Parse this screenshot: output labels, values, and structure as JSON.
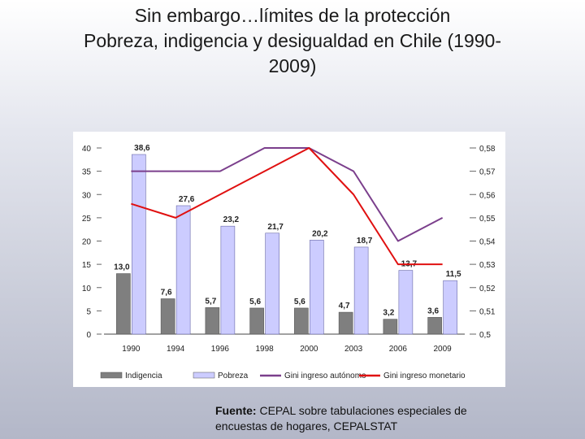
{
  "slide": {
    "title_line1": "Sin embargo…límites de la protección",
    "title_line2": "Pobreza, indigencia y desigualdad en Chile (1990-",
    "title_line3": "2009)"
  },
  "chart_data": {
    "type": "bar",
    "title": "",
    "categories": [
      "1990",
      "1994",
      "1996",
      "1998",
      "2000",
      "2003",
      "2006",
      "2009"
    ],
    "y_left": {
      "ylim": [
        0,
        40
      ],
      "ticks": [
        0,
        5,
        10,
        15,
        20,
        25,
        30,
        35,
        40
      ],
      "tick_labels": [
        "0",
        "5",
        "10",
        "15",
        "20",
        "25",
        "30",
        "35",
        "40"
      ]
    },
    "y_right": {
      "ylim": [
        0.5,
        0.58
      ],
      "ticks": [
        0.5,
        0.51,
        0.52,
        0.53,
        0.54,
        0.55,
        0.56,
        0.57,
        0.58
      ],
      "tick_labels": [
        "0,5",
        "0,51",
        "0,52",
        "0,53",
        "0,54",
        "0,55",
        "0,56",
        "0,57",
        "0,58"
      ]
    },
    "series": [
      {
        "name": "Indigencia",
        "kind": "bar",
        "axis": "left",
        "color": "#7f7f7f",
        "values": [
          13.0,
          7.6,
          5.7,
          5.6,
          5.6,
          4.7,
          3.2,
          3.6
        ],
        "labels": [
          "13,0",
          "7,6",
          "5,7",
          "5,6",
          "5,6",
          "4,7",
          "3,2",
          "3,6"
        ]
      },
      {
        "name": "Pobreza",
        "kind": "bar",
        "axis": "left",
        "color": "#ccccff",
        "values": [
          38.6,
          27.6,
          23.2,
          21.7,
          20.2,
          18.7,
          13.7,
          11.5
        ],
        "labels": [
          "38,6",
          "27,6",
          "23,2",
          "21,7",
          "20,2",
          "18,7",
          "13,7",
          "11,5"
        ]
      },
      {
        "name": "Gini ingreso autónomo",
        "kind": "line",
        "axis": "right",
        "color": "#7b3f8c",
        "values": [
          0.57,
          0.57,
          0.57,
          0.58,
          0.58,
          0.57,
          0.54,
          0.55
        ]
      },
      {
        "name": "Gini ingreso monetario",
        "kind": "line",
        "axis": "right",
        "color": "#e01010",
        "values": [
          0.556,
          0.55,
          0.56,
          0.57,
          0.58,
          0.56,
          0.53,
          0.53
        ]
      }
    ]
  },
  "source": {
    "label": "Fuente:",
    "text": " CEPAL sobre tabulaciones especiales de",
    "text_line2": "encuestas de hogares, CEPALSTAT"
  }
}
